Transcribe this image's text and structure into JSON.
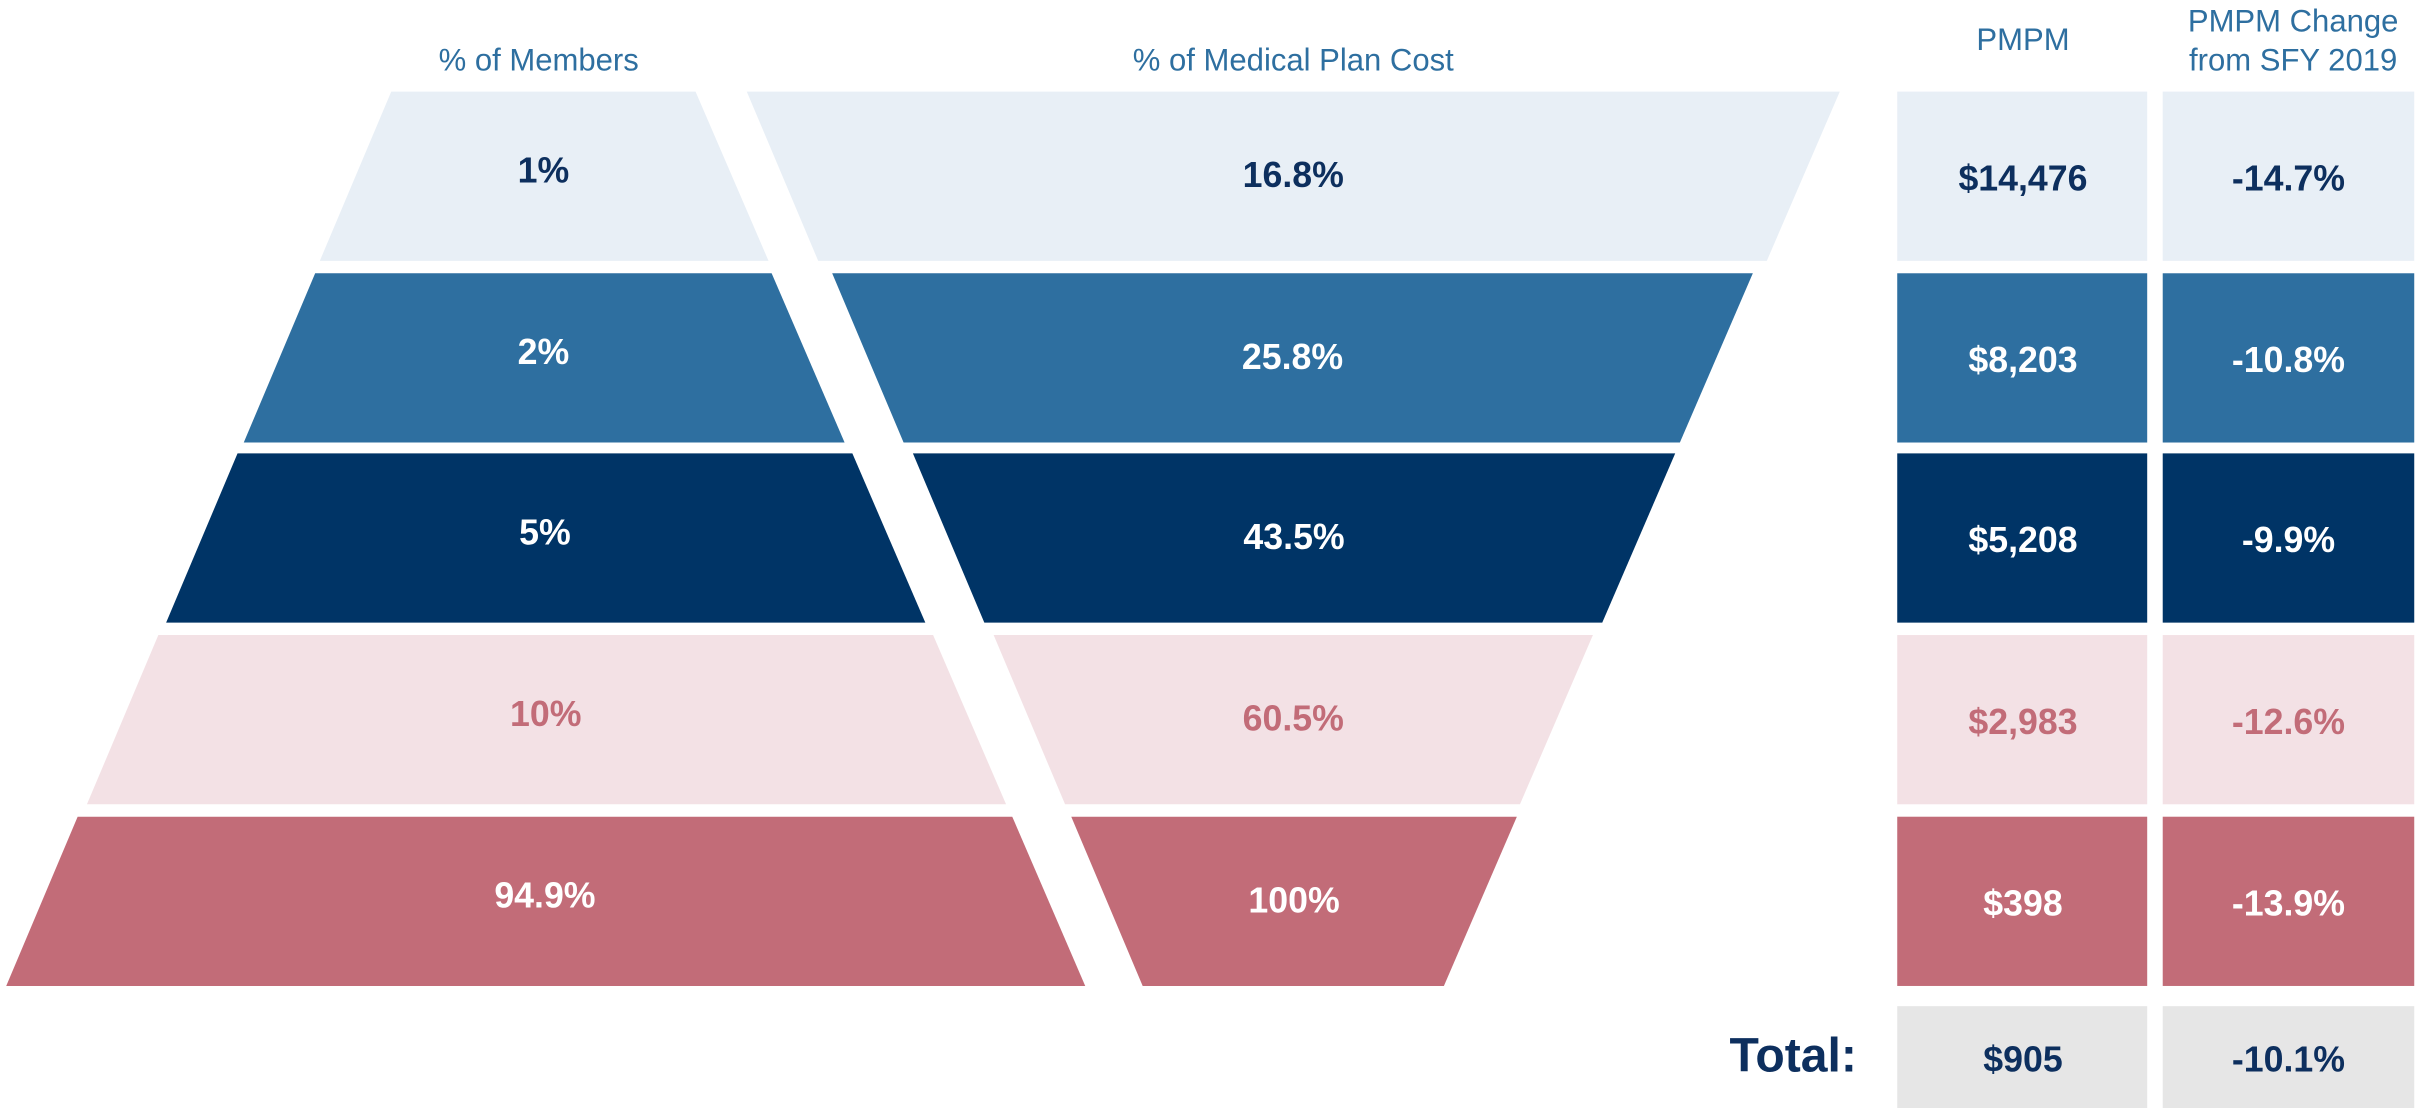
{
  "headers": {
    "members": "% of Members",
    "cost": "% of Medical Plan Cost",
    "pmpm": "PMPM",
    "change": [
      "PMPM Change",
      "from SFY 2019"
    ]
  },
  "rows": [
    {
      "members": "1%",
      "cost": "16.8%",
      "pmpm": "$14,476",
      "change": "-14.7%"
    },
    {
      "members": "2%",
      "cost": "25.8%",
      "pmpm": "$8,203",
      "change": "-10.8%"
    },
    {
      "members": "5%",
      "cost": "43.5%",
      "pmpm": "$5,208",
      "change": "-9.9%"
    },
    {
      "members": "10%",
      "cost": "60.5%",
      "pmpm": "$2,983",
      "change": "-12.6%"
    },
    {
      "members": "94.9%",
      "cost": "100%",
      "pmpm": "$398",
      "change": "-13.9%"
    }
  ],
  "total": {
    "label": "Total:",
    "pmpm": "$905",
    "change": "-10.1%"
  }
}
